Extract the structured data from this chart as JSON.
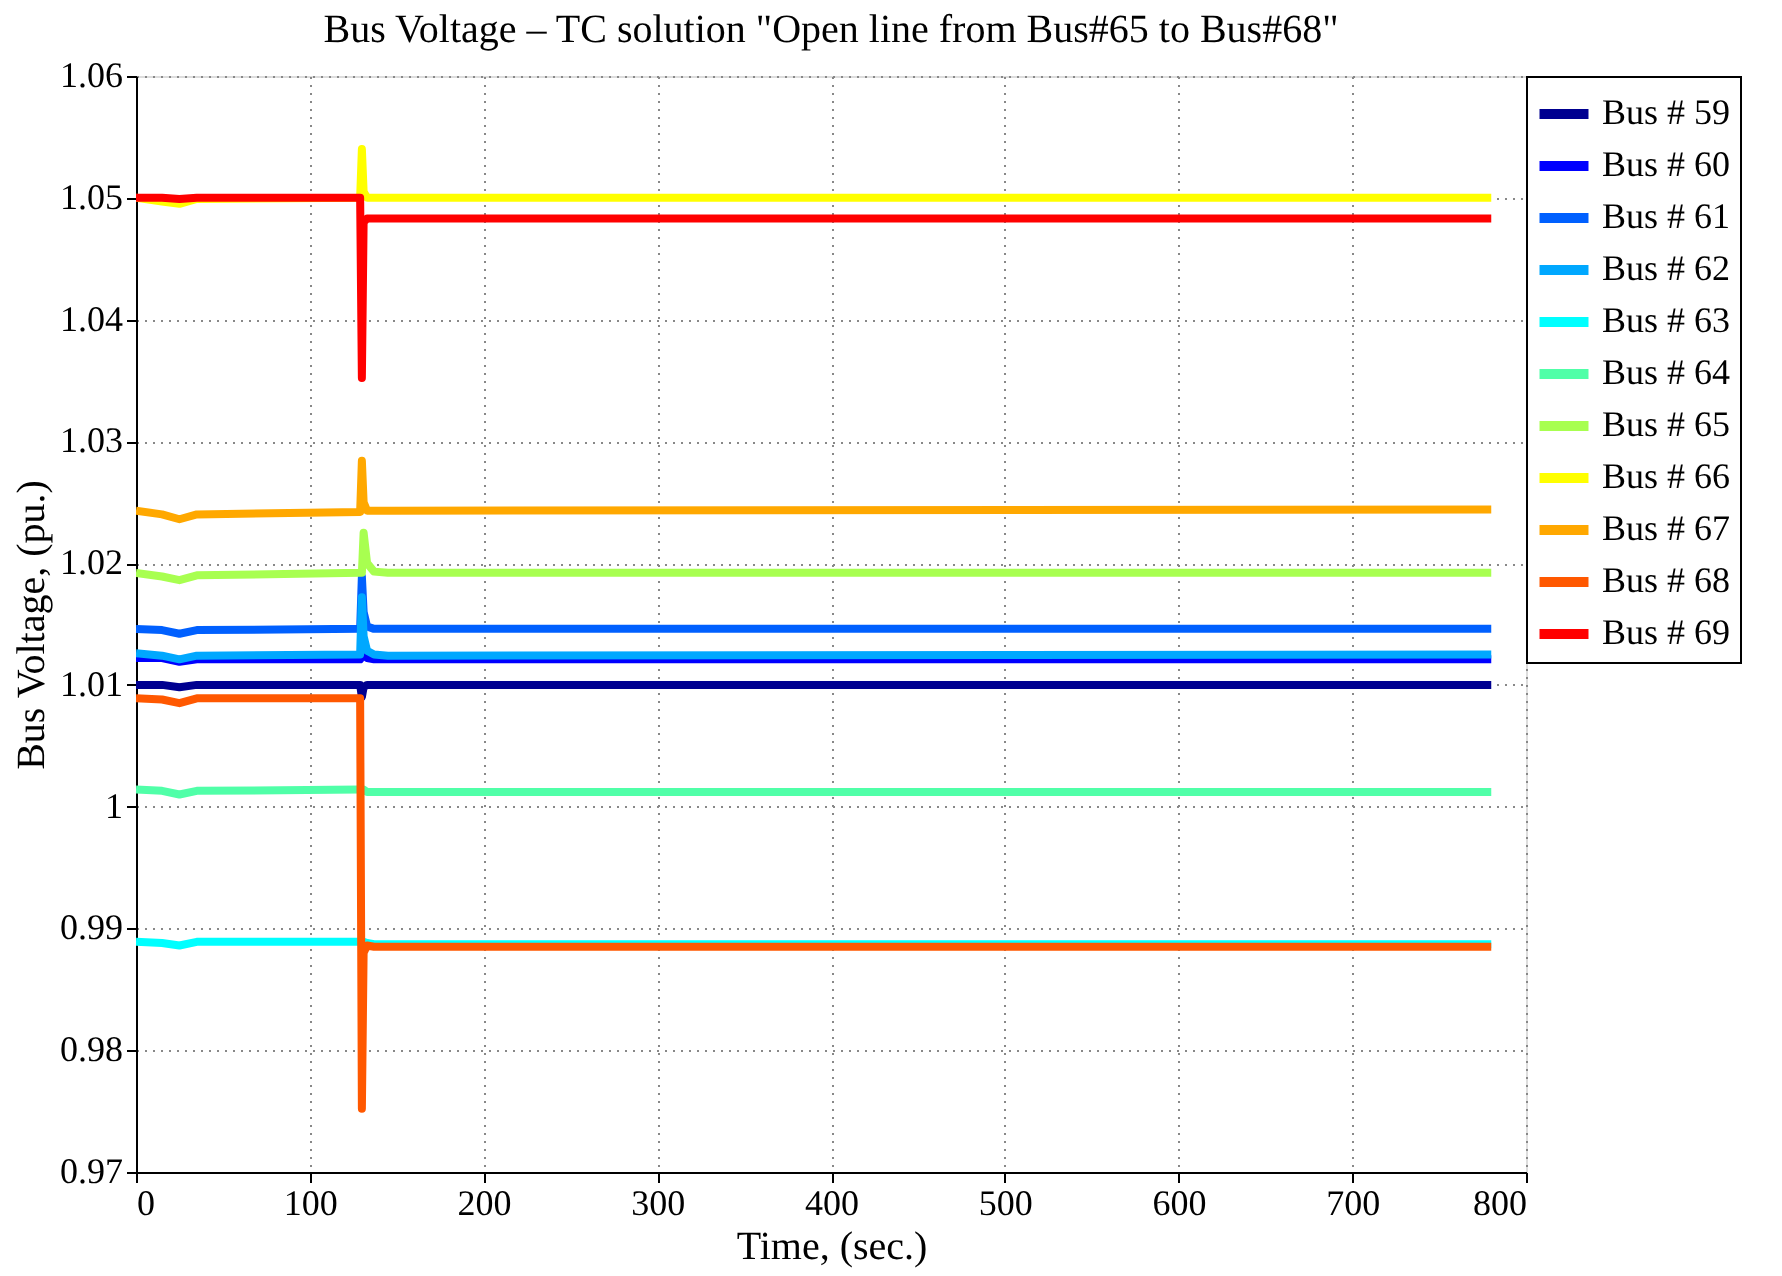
{
  "chart_data": {
    "type": "line",
    "title": "Bus Voltage – TC solution \"Open line from Bus#65 to Bus#68\"",
    "xlabel": "Time, (sec.)",
    "ylabel": "Bus Voltage, (pu.)",
    "x": [
      0,
      15,
      25,
      35,
      129,
      130,
      131,
      133,
      137,
      145,
      780
    ],
    "xlim": [
      0,
      800
    ],
    "xticks": [
      0,
      100,
      200,
      300,
      400,
      500,
      600,
      700,
      800
    ],
    "ylim": [
      0.97,
      1.06
    ],
    "yticks": [
      0.97,
      0.98,
      0.99,
      1,
      1.01,
      1.02,
      1.03,
      1.04,
      1.05,
      1.06
    ],
    "grid": true,
    "legend": "top right",
    "marker": "none",
    "line_style": "solid",
    "series": [
      {
        "name": "Bus # 59",
        "color": "#000090",
        "values": [
          1.01,
          1.01,
          1.0098,
          1.01,
          1.01,
          1.009,
          1.0098,
          1.01,
          1.01,
          1.01,
          1.01
        ]
      },
      {
        "name": "Bus # 60",
        "color": "#0000ff",
        "values": [
          1.0122,
          1.0122,
          1.0119,
          1.0121,
          1.0121,
          1.013,
          1.0125,
          1.0122,
          1.0121,
          1.0121,
          1.0121
        ]
      },
      {
        "name": "Bus # 61",
        "color": "#0060ff",
        "values": [
          1.0146,
          1.0145,
          1.0142,
          1.0145,
          1.0146,
          1.0189,
          1.016,
          1.0148,
          1.0146,
          1.0146,
          1.0146
        ]
      },
      {
        "name": "Bus # 62",
        "color": "#00a8ff",
        "values": [
          1.0126,
          1.0124,
          1.0121,
          1.0124,
          1.0125,
          1.0172,
          1.014,
          1.0128,
          1.0125,
          1.0124,
          1.0125
        ]
      },
      {
        "name": "Bus # 63",
        "color": "#00ffff",
        "values": [
          0.9889,
          0.9888,
          0.9886,
          0.9889,
          0.9889,
          0.9889,
          0.9889,
          0.9888,
          0.9887,
          0.9887,
          0.9887
        ]
      },
      {
        "name": "Bus # 64",
        "color": "#50ffa8",
        "values": [
          1.0014,
          1.0013,
          1.001,
          1.0013,
          1.0014,
          1.0014,
          1.0014,
          1.0012,
          1.0012,
          1.0012,
          1.0012
        ]
      },
      {
        "name": "Bus # 65",
        "color": "#a8ff50",
        "values": [
          1.0192,
          1.0189,
          1.0186,
          1.019,
          1.0192,
          1.0192,
          1.0225,
          1.02,
          1.0193,
          1.0192,
          1.0192
        ]
      },
      {
        "name": "Bus # 66",
        "color": "#ffff00",
        "values": [
          1.05,
          1.0497,
          1.0495,
          1.0499,
          1.05,
          1.054,
          1.0505,
          1.05,
          1.05,
          1.05,
          1.05
        ]
      },
      {
        "name": "Bus # 67",
        "color": "#ffa800",
        "values": [
          1.0243,
          1.024,
          1.0236,
          1.024,
          1.0242,
          1.0284,
          1.025,
          1.0243,
          1.0243,
          1.0243,
          1.0244
        ]
      },
      {
        "name": "Bus # 68",
        "color": "#ff5800",
        "values": [
          1.0089,
          1.0088,
          1.0085,
          1.0089,
          1.0089,
          0.9752,
          0.988,
          0.9886,
          0.9885,
          0.9885,
          0.9885
        ]
      },
      {
        "name": "Bus # 69",
        "color": "#ff0000",
        "values": [
          1.05,
          1.05,
          1.0499,
          1.05,
          1.05,
          1.0352,
          1.048,
          1.0483,
          1.0483,
          1.0483,
          1.0483
        ]
      }
    ]
  }
}
